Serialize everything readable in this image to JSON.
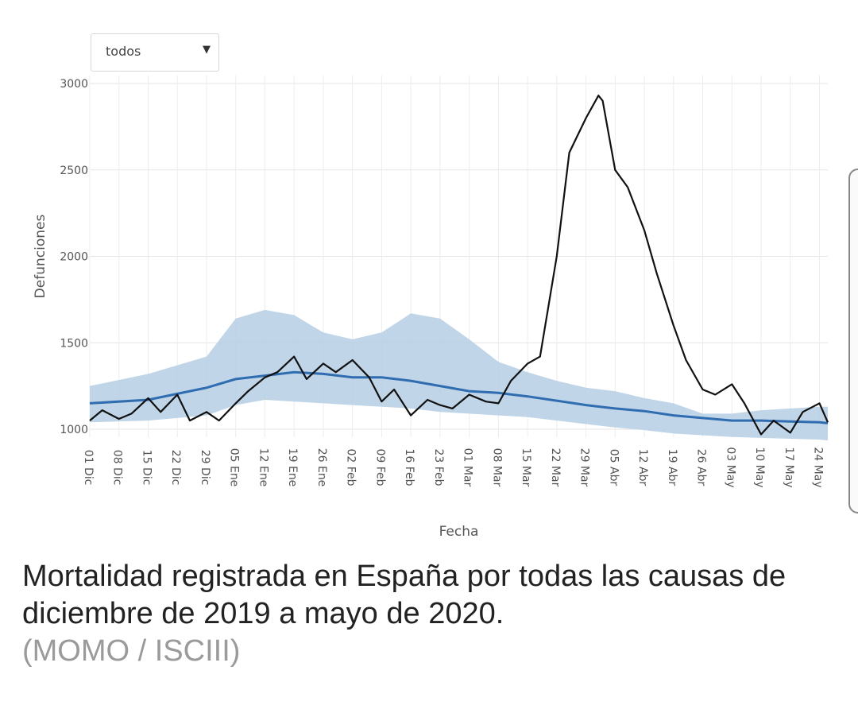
{
  "filter": {
    "selected": "todos"
  },
  "caption": {
    "text": "Mortalidad registrada en España por todas las causas de diciembre de 2019 a mayo de 2020.",
    "source": "(MOMO / ISCIII)"
  },
  "chart_data": {
    "type": "line",
    "xlabel": "Fecha",
    "ylabel": "Defunciones",
    "ylim": [
      1000,
      3000
    ],
    "yticks": [
      1000,
      1500,
      2000,
      2500,
      3000
    ],
    "x_start": "2019-12-01",
    "x_end": "2020-05-26",
    "x_ticks": [
      "01 Dic",
      "08 Dic",
      "15 Dic",
      "22 Dic",
      "29 Dic",
      "05 Ene",
      "12 Ene",
      "19 Ene",
      "26 Ene",
      "02 Feb",
      "09 Feb",
      "16 Feb",
      "23 Feb",
      "01 Mar",
      "08 Mar",
      "15 Mar",
      "22 Mar",
      "29 Mar",
      "05 Abr",
      "12 Abr",
      "19 Abr",
      "26 Abr",
      "03 May",
      "10 May",
      "17 May",
      "24 May"
    ],
    "grid": true,
    "colors": {
      "observed": "#111111",
      "expected": "#2f6db0",
      "band": "#b9d0e6"
    },
    "series": [
      {
        "role": "observed",
        "dates": [
          "01 Dic",
          "04 Dic",
          "08 Dic",
          "11 Dic",
          "15 Dic",
          "18 Dic",
          "22 Dic",
          "25 Dic",
          "29 Dic",
          "01 Ene",
          "05 Ene",
          "08 Ene",
          "12 Ene",
          "15 Ene",
          "19 Ene",
          "22 Ene",
          "26 Ene",
          "29 Ene",
          "02 Feb",
          "06 Feb",
          "09 Feb",
          "12 Feb",
          "16 Feb",
          "20 Feb",
          "23 Feb",
          "26 Feb",
          "01 Mar",
          "05 Mar",
          "08 Mar",
          "11 Mar",
          "15 Mar",
          "18 Mar",
          "22 Mar",
          "25 Mar",
          "29 Mar",
          "01 Abr",
          "02 Abr",
          "05 Abr",
          "08 Abr",
          "12 Abr",
          "15 Abr",
          "19 Abr",
          "22 Abr",
          "26 Abr",
          "29 Abr",
          "03 May",
          "06 May",
          "10 May",
          "13 May",
          "17 May",
          "20 May",
          "24 May",
          "26 May"
        ],
        "values": [
          1050,
          1110,
          1060,
          1090,
          1180,
          1100,
          1200,
          1050,
          1100,
          1050,
          1150,
          1220,
          1300,
          1330,
          1420,
          1290,
          1380,
          1330,
          1400,
          1300,
          1160,
          1230,
          1080,
          1170,
          1140,
          1120,
          1200,
          1160,
          1150,
          1280,
          1380,
          1420,
          2000,
          2600,
          2800,
          2930,
          2900,
          2500,
          2400,
          2150,
          1900,
          1600,
          1400,
          1230,
          1200,
          1260,
          1150,
          970,
          1050,
          980,
          1100,
          1150,
          1040
        ]
      },
      {
        "role": "expected",
        "dates": [
          "01 Dic",
          "15 Dic",
          "29 Dic",
          "05 Ene",
          "12 Ene",
          "19 Ene",
          "26 Ene",
          "02 Feb",
          "09 Feb",
          "16 Feb",
          "23 Feb",
          "01 Mar",
          "08 Mar",
          "15 Mar",
          "22 Mar",
          "29 Mar",
          "05 Abr",
          "12 Abr",
          "19 Abr",
          "26 Abr",
          "03 May",
          "10 May",
          "17 May",
          "24 May",
          "26 May"
        ],
        "values": [
          1150,
          1170,
          1240,
          1290,
          1310,
          1330,
          1320,
          1300,
          1300,
          1280,
          1250,
          1220,
          1210,
          1190,
          1165,
          1140,
          1120,
          1105,
          1080,
          1065,
          1050,
          1050,
          1045,
          1040,
          1035
        ],
        "lower": [
          1040,
          1050,
          1080,
          1140,
          1170,
          1160,
          1150,
          1140,
          1130,
          1120,
          1100,
          1090,
          1080,
          1070,
          1050,
          1030,
          1010,
          995,
          975,
          965,
          955,
          950,
          945,
          940,
          935
        ],
        "upper": [
          1250,
          1320,
          1420,
          1640,
          1690,
          1660,
          1560,
          1520,
          1560,
          1670,
          1640,
          1520,
          1390,
          1330,
          1280,
          1240,
          1220,
          1180,
          1150,
          1090,
          1090,
          1110,
          1120,
          1130,
          1130
        ]
      }
    ]
  }
}
